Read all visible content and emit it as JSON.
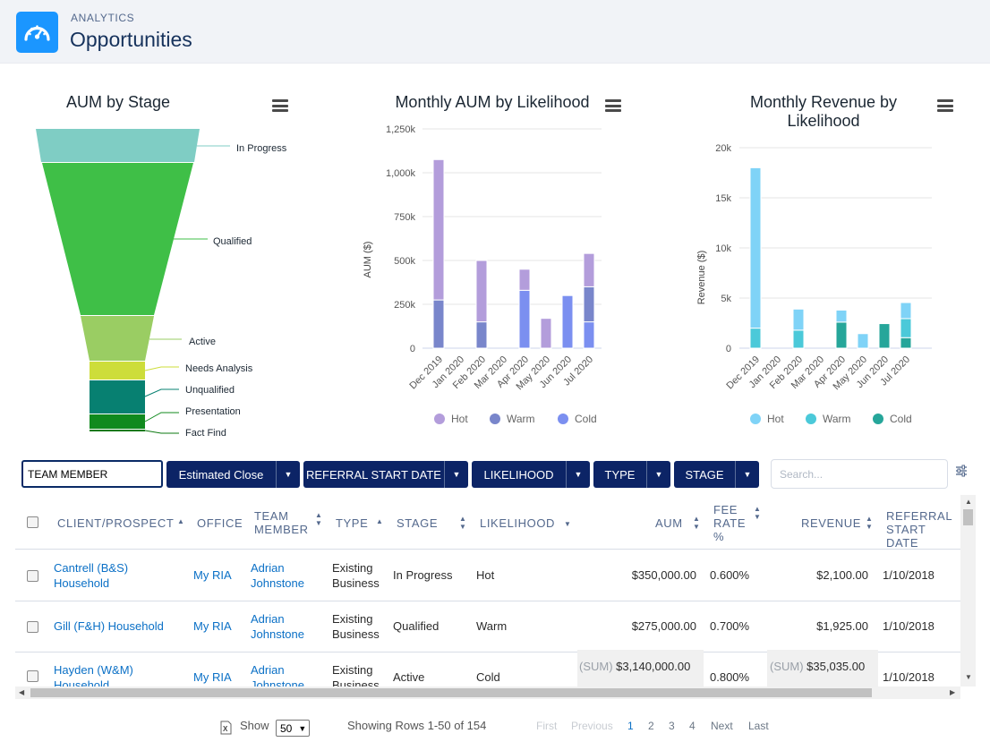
{
  "header": {
    "subtitle": "ANALYTICS",
    "title": "Opportunities",
    "icon": "gauge-icon",
    "icon_color": "#1b96ff"
  },
  "charts": {
    "funnel": {
      "title": "AUM by Stage",
      "labels": [
        "In Progress",
        "Qualified",
        "Active",
        "Needs Analysis",
        "Unqualified",
        "Presentation",
        "Fact Find"
      ]
    },
    "aum_axis": {
      "ticks": [
        "1,250k",
        "1,000k",
        "750k",
        "500k",
        "250k",
        "0"
      ],
      "months": [
        "Dec 2019",
        "Jan 2020",
        "Feb 2020",
        "Mar 2020",
        "Apr 2020",
        "May 2020",
        "Jun 2020",
        "Jul 2020"
      ]
    },
    "rev_axis": {
      "ticks": [
        "20k",
        "15k",
        "10k",
        "5k",
        "0"
      ],
      "months": [
        "Dec 2019",
        "Jan 2020",
        "Feb 2020",
        "Mar 2020",
        "Apr 2020",
        "May 2020",
        "Jun 2020",
        "Jul 2020"
      ]
    }
  },
  "chart_data": [
    {
      "type": "area",
      "title": "AUM by Stage",
      "categories": [
        "In Progress",
        "Qualified",
        "Active",
        "Needs Analysis",
        "Unqualified",
        "Presentation",
        "Fact Find"
      ],
      "colors": [
        "#7fcdc4",
        "#3fbf47",
        "#9acd63",
        "#cddd3a",
        "#078071",
        "#108a1e",
        "#0e7a12"
      ]
    },
    {
      "type": "bar",
      "title": "Monthly AUM by Likelihood",
      "ylabel": "AUM ($)",
      "ylim": [
        0,
        1250000
      ],
      "categories": [
        "Dec 2019",
        "Jan 2020",
        "Feb 2020",
        "Mar 2020",
        "Apr 2020",
        "May 2020",
        "Jun 2020",
        "Jul 2020"
      ],
      "series": [
        {
          "name": "Hot",
          "color": "#b39ddb",
          "values": [
            800000,
            0,
            350000,
            0,
            120000,
            170000,
            0,
            190000
          ]
        },
        {
          "name": "Warm",
          "color": "#7986cb",
          "values": [
            275000,
            0,
            150000,
            0,
            0,
            0,
            0,
            200000
          ]
        },
        {
          "name": "Cold",
          "color": "#7b8ff0",
          "values": [
            0,
            0,
            0,
            0,
            330000,
            0,
            300000,
            150000
          ]
        }
      ],
      "legend": "bottom"
    },
    {
      "type": "bar",
      "title": "Monthly Revenue by Likelihood",
      "ylabel": "Revenue ($)",
      "ylim": [
        0,
        20000
      ],
      "categories": [
        "Dec 2019",
        "Jan 2020",
        "Feb 2020",
        "Mar 2020",
        "Apr 2020",
        "May 2020",
        "Jun 2020",
        "Jul 2020"
      ],
      "series": [
        {
          "name": "Hot",
          "color": "#7fd3f7",
          "values": [
            16000,
            0,
            2100,
            0,
            1200,
            1450,
            0,
            1600
          ]
        },
        {
          "name": "Warm",
          "color": "#4bc9d9",
          "values": [
            2000,
            0,
            1800,
            0,
            0,
            0,
            0,
            1900
          ]
        },
        {
          "name": "Cold",
          "color": "#26a69a",
          "values": [
            0,
            0,
            0,
            0,
            2600,
            0,
            2450,
            1050
          ]
        }
      ],
      "legend": "bottom"
    }
  ],
  "toolbar": {
    "team_member_value": "TEAM MEMBER",
    "buttons": [
      "Estimated Close",
      "REFERRAL START DATE",
      "LIKELIHOOD",
      "TYPE",
      "STAGE"
    ],
    "search_placeholder": "Search...",
    "accent": "#0c2466"
  },
  "table": {
    "headers": {
      "client": "CLIENT/PROSPECT",
      "office": "OFFICE",
      "team1": "TEAM",
      "team2": "MEMBER",
      "type": "TYPE",
      "stage": "STAGE",
      "likelihood": "LIKELIHOOD",
      "aum": "AUM",
      "fee1": "FEE",
      "fee2": "RATE",
      "fee3": "%",
      "revenue": "REVENUE",
      "ref1": "REFERRAL",
      "ref2": "START DATE"
    },
    "rows": [
      {
        "c1": "Cantrell (B&S)",
        "c2": "Household",
        "office": "My RIA",
        "t1": "Adrian",
        "t2": "Johnstone",
        "ty1": "Existing",
        "ty2": "Business",
        "stage": "In Progress",
        "likelihood": "Hot",
        "aum": "$350,000.00",
        "fee": "0.600%",
        "revenue": "$2,100.00",
        "date": "1/10/2018"
      },
      {
        "c1": "Gill (F&H) Household",
        "c2": "",
        "office": "My RIA",
        "t1": "Adrian",
        "t2": "Johnstone",
        "ty1": "Existing",
        "ty2": "Business",
        "stage": "Qualified",
        "likelihood": "Warm",
        "aum": "$275,000.00",
        "fee": "0.700%",
        "revenue": "$1,925.00",
        "date": "1/10/2018"
      },
      {
        "c1": "Hayden (W&M)",
        "c2": "Household",
        "office": "My RIA",
        "t1": "Adrian",
        "t2": "Johnstone",
        "ty1": "Existing",
        "ty2": "Business",
        "stage": "Active",
        "likelihood": "Cold",
        "aum": "$3,140,000.00",
        "fee": "0.800%",
        "revenue": "$35,035.00",
        "date": "1/10/2018"
      }
    ],
    "sum_label": "(SUM)"
  },
  "footer": {
    "show": "Show",
    "page_size": "50",
    "showing": "Showing Rows 1-50 of 154",
    "first": "First",
    "previous": "Previous",
    "pages": [
      "1",
      "2",
      "3",
      "4"
    ],
    "next": "Next",
    "last": "Last"
  }
}
